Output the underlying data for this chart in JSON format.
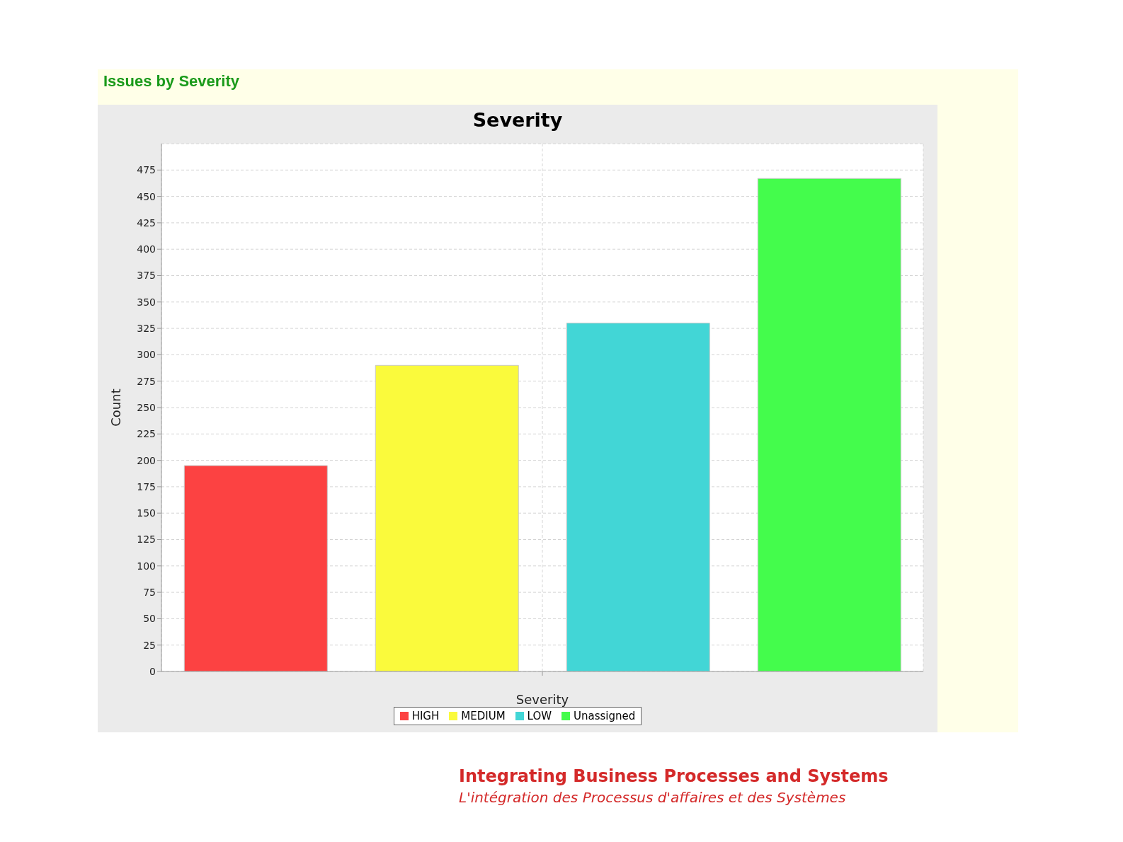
{
  "chart_data": {
    "type": "bar",
    "title": "Issues by Severity",
    "subtitle": "Severity",
    "xlabel": "Severity",
    "ylabel": "Count",
    "categories": [
      null
    ],
    "series": [
      {
        "name": "HIGH",
        "color": "#fc4242",
        "values": [
          195
        ]
      },
      {
        "name": "MEDIUM",
        "color": "#fafa3c",
        "values": [
          290
        ]
      },
      {
        "name": "LOW",
        "color": "#42d6d6",
        "values": [
          330
        ]
      },
      {
        "name": "Unassigned",
        "color": "#44fc4c",
        "values": [
          467
        ]
      }
    ],
    "ylim": [
      0,
      500
    ],
    "yticks": [
      0,
      25,
      50,
      75,
      100,
      125,
      150,
      175,
      200,
      225,
      250,
      275,
      300,
      325,
      350,
      375,
      400,
      425,
      450,
      475
    ],
    "grid": true,
    "legend": "bottom",
    "annotations": [
      "Integrating Business Processes and Systems",
      "L'intégration des Processus d'affaires et des Systèmes"
    ]
  }
}
